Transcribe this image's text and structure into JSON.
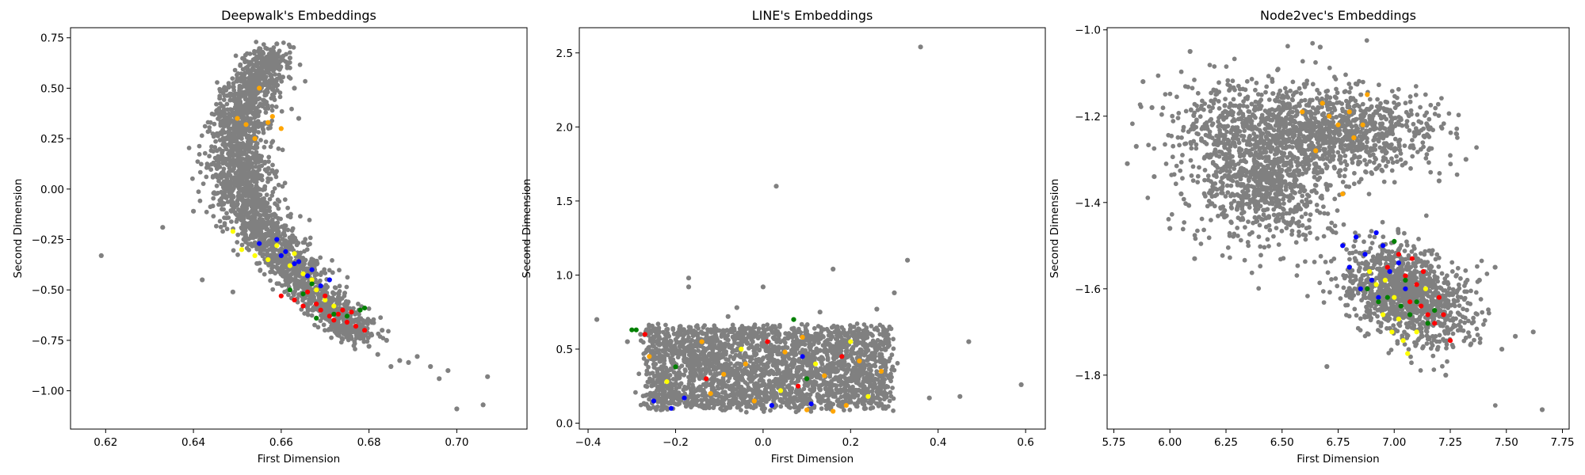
{
  "chart_data": [
    {
      "type": "scatter",
      "title": "Deepwalk's Embeddings",
      "xlabel": "First Dimension",
      "ylabel": "Second Dimension",
      "xlim": [
        0.612,
        0.716
      ],
      "ylim": [
        -1.19,
        0.8
      ],
      "xticks": [
        0.62,
        0.64,
        0.66,
        0.68,
        0.7
      ],
      "xtick_labels": [
        "0.62",
        "0.64",
        "0.66",
        "0.68",
        "0.70"
      ],
      "yticks": [
        -1.0,
        -0.75,
        -0.5,
        -0.25,
        0.0,
        0.25,
        0.5,
        0.75
      ],
      "ytick_labels": [
        "−1.00",
        "−0.75",
        "−0.50",
        "−0.25",
        "0.00",
        "0.25",
        "0.50",
        "0.75"
      ],
      "grid": false,
      "series": [
        {
          "color": "#808080",
          "points": [
            [
              0.619,
              -0.33
            ],
            [
              0.633,
              -0.19
            ],
            [
              0.64,
              -0.11
            ],
            [
              0.642,
              -0.45
            ],
            [
              0.648,
              0.22
            ],
            [
              0.649,
              -0.51
            ],
            [
              0.658,
              0.68
            ],
            [
              0.659,
              0.72
            ],
            [
              0.662,
              0.65
            ],
            [
              0.646,
              0.45
            ],
            [
              0.65,
              0.55
            ],
            [
              0.652,
              0.6
            ],
            [
              0.655,
              0.58
            ],
            [
              0.664,
              0.35
            ],
            [
              0.663,
              0.5
            ],
            [
              0.68,
              -0.78
            ],
            [
              0.682,
              -0.82
            ],
            [
              0.684,
              -0.75
            ],
            [
              0.685,
              -0.88
            ],
            [
              0.687,
              -0.85
            ],
            [
              0.689,
              -0.86
            ],
            [
              0.691,
              -0.83
            ],
            [
              0.694,
              -0.88
            ],
            [
              0.696,
              -0.94
            ],
            [
              0.698,
              -0.9
            ],
            [
              0.7,
              -1.09
            ],
            [
              0.706,
              -1.07
            ],
            [
              0.707,
              -0.93
            ],
            [
              0.683,
              -0.7
            ],
            [
              0.678,
              -0.74
            ]
          ]
        },
        {
          "color": "#ffff00",
          "points": [
            [
              0.649,
              -0.21
            ],
            [
              0.651,
              -0.3
            ],
            [
              0.654,
              -0.33
            ],
            [
              0.657,
              -0.35
            ],
            [
              0.659,
              -0.28
            ],
            [
              0.662,
              -0.38
            ],
            [
              0.665,
              -0.42
            ],
            [
              0.668,
              -0.5
            ],
            [
              0.67,
              -0.55
            ],
            [
              0.672,
              -0.58
            ],
            [
              0.667,
              -0.45
            ],
            [
              0.663,
              -0.32
            ]
          ]
        },
        {
          "color": "#0000ff",
          "points": [
            [
              0.655,
              -0.27
            ],
            [
              0.659,
              -0.25
            ],
            [
              0.661,
              -0.31
            ],
            [
              0.663,
              -0.37
            ],
            [
              0.664,
              -0.36
            ],
            [
              0.667,
              -0.4
            ],
            [
              0.669,
              -0.48
            ],
            [
              0.671,
              -0.45
            ],
            [
              0.66,
              -0.33
            ],
            [
              0.666,
              -0.43
            ]
          ]
        },
        {
          "color": "#ff0000",
          "points": [
            [
              0.66,
              -0.53
            ],
            [
              0.663,
              -0.55
            ],
            [
              0.666,
              -0.51
            ],
            [
              0.668,
              -0.57
            ],
            [
              0.669,
              -0.6
            ],
            [
              0.671,
              -0.63
            ],
            [
              0.673,
              -0.62
            ],
            [
              0.674,
              -0.6
            ],
            [
              0.675,
              -0.66
            ],
            [
              0.676,
              -0.61
            ],
            [
              0.677,
              -0.68
            ],
            [
              0.679,
              -0.7
            ],
            [
              0.665,
              -0.58
            ],
            [
              0.67,
              -0.53
            ],
            [
              0.672,
              -0.65
            ]
          ]
        },
        {
          "color": "#008000",
          "points": [
            [
              0.662,
              -0.5
            ],
            [
              0.665,
              -0.52
            ],
            [
              0.668,
              -0.64
            ],
            [
              0.672,
              -0.62
            ],
            [
              0.675,
              -0.63
            ],
            [
              0.678,
              -0.6
            ],
            [
              0.679,
              -0.59
            ],
            [
              0.667,
              -0.47
            ]
          ]
        },
        {
          "color": "#ffa500",
          "points": [
            [
              0.65,
              0.35
            ],
            [
              0.652,
              0.32
            ],
            [
              0.654,
              0.25
            ],
            [
              0.655,
              0.5
            ],
            [
              0.657,
              0.33
            ],
            [
              0.658,
              0.36
            ],
            [
              0.66,
              0.3
            ]
          ]
        }
      ]
    },
    {
      "type": "scatter",
      "title": "LINE's Embeddings",
      "xlabel": "First Dimension",
      "ylabel": "Second Dimension",
      "xlim": [
        -0.42,
        0.645
      ],
      "ylim": [
        -0.04,
        2.67
      ],
      "xticks": [
        -0.4,
        -0.2,
        0.0,
        0.2,
        0.4,
        0.6
      ],
      "xtick_labels": [
        "−0.4",
        "−0.2",
        "0.0",
        "0.2",
        "0.4",
        "0.6"
      ],
      "yticks": [
        0.0,
        0.5,
        1.0,
        1.5,
        2.0,
        2.5
      ],
      "ytick_labels": [
        "0.0",
        "0.5",
        "1.0",
        "1.5",
        "2.0",
        "2.5"
      ],
      "grid": false,
      "series": [
        {
          "color": "#808080",
          "points": [
            [
              -0.38,
              0.7
            ],
            [
              -0.31,
              0.55
            ],
            [
              -0.17,
              0.92
            ],
            [
              -0.17,
              0.98
            ],
            [
              -0.08,
              0.72
            ],
            [
              -0.06,
              0.78
            ],
            [
              0.0,
              0.92
            ],
            [
              0.03,
              1.6
            ],
            [
              0.13,
              0.75
            ],
            [
              0.16,
              1.04
            ],
            [
              0.3,
              0.88
            ],
            [
              0.33,
              1.1
            ],
            [
              0.36,
              2.54
            ],
            [
              0.38,
              0.17
            ],
            [
              0.45,
              0.18
            ],
            [
              0.47,
              0.55
            ],
            [
              0.59,
              0.26
            ],
            [
              0.26,
              0.77
            ],
            [
              -0.28,
              0.6
            ],
            [
              0.28,
              0.1
            ]
          ]
        },
        {
          "color": "#008000",
          "points": [
            [
              -0.3,
              0.63
            ],
            [
              -0.29,
              0.63
            ],
            [
              0.07,
              0.7
            ],
            [
              -0.2,
              0.38
            ],
            [
              0.1,
              0.3
            ]
          ]
        },
        {
          "color": "#0000ff",
          "points": [
            [
              -0.25,
              0.15
            ],
            [
              -0.21,
              0.1
            ],
            [
              -0.18,
              0.17
            ],
            [
              0.02,
              0.12
            ],
            [
              0.11,
              0.13
            ],
            [
              0.09,
              0.45
            ]
          ]
        },
        {
          "color": "#ffa500",
          "points": [
            [
              -0.26,
              0.45
            ],
            [
              -0.14,
              0.55
            ],
            [
              -0.09,
              0.33
            ],
            [
              -0.04,
              0.4
            ],
            [
              -0.02,
              0.15
            ],
            [
              0.05,
              0.48
            ],
            [
              0.09,
              0.58
            ],
            [
              0.14,
              0.32
            ],
            [
              0.19,
              0.12
            ],
            [
              0.16,
              0.08
            ],
            [
              0.22,
              0.42
            ],
            [
              0.27,
              0.35
            ],
            [
              -0.12,
              0.2
            ],
            [
              0.1,
              0.09
            ]
          ]
        },
        {
          "color": "#ffff00",
          "points": [
            [
              -0.22,
              0.28
            ],
            [
              -0.05,
              0.5
            ],
            [
              0.04,
              0.22
            ],
            [
              0.12,
              0.4
            ],
            [
              0.2,
              0.55
            ],
            [
              0.24,
              0.18
            ]
          ]
        },
        {
          "color": "#ff0000",
          "points": [
            [
              -0.27,
              0.6
            ],
            [
              -0.13,
              0.3
            ],
            [
              0.01,
              0.55
            ],
            [
              0.08,
              0.25
            ],
            [
              0.18,
              0.45
            ]
          ]
        }
      ]
    },
    {
      "type": "scatter",
      "title": "Node2vec's Embeddings",
      "xlabel": "First Dimension",
      "ylabel": "Second Dimension",
      "xlim": [
        5.72,
        7.78
      ],
      "ylim": [
        -1.925,
        -0.995
      ],
      "xticks": [
        5.75,
        6.0,
        6.25,
        6.5,
        6.75,
        7.0,
        7.25,
        7.5,
        7.75
      ],
      "xtick_labels": [
        "5.75",
        "6.00",
        "6.25",
        "6.50",
        "6.75",
        "7.00",
        "7.25",
        "7.50",
        "7.75"
      ],
      "yticks": [
        -1.8,
        -1.6,
        -1.4,
        -1.2,
        -1.0
      ],
      "ytick_labels": [
        "−1.8",
        "−1.6",
        "−1.4",
        "−1.2",
        "−1.0"
      ],
      "grid": false,
      "series": [
        {
          "color": "#808080",
          "points": [
            [
              5.81,
              -1.31
            ],
            [
              5.85,
              -1.27
            ],
            [
              5.88,
              -1.12
            ],
            [
              5.92,
              -1.18
            ],
            [
              5.93,
              -1.34
            ],
            [
              6.09,
              -1.05
            ],
            [
              6.11,
              -1.53
            ],
            [
              6.67,
              -1.04
            ],
            [
              6.7,
              -1.78
            ],
            [
              7.54,
              -1.71
            ],
            [
              7.62,
              -1.7
            ],
            [
              7.66,
              -1.88
            ],
            [
              7.48,
              -1.74
            ],
            [
              7.45,
              -1.55
            ],
            [
              7.38,
              -1.58
            ],
            [
              7.23,
              -1.8
            ],
            [
              6.0,
              -1.46
            ],
            [
              6.05,
              -1.38
            ],
            [
              7.2,
              -1.35
            ],
            [
              7.32,
              -1.3
            ]
          ]
        },
        {
          "color": "#ffa500",
          "points": [
            [
              6.59,
              -1.19
            ],
            [
              6.68,
              -1.17
            ],
            [
              6.75,
              -1.22
            ],
            [
              6.82,
              -1.25
            ],
            [
              6.86,
              -1.22
            ],
            [
              6.77,
              -1.38
            ],
            [
              6.65,
              -1.28
            ],
            [
              6.71,
              -1.2
            ],
            [
              6.8,
              -1.19
            ],
            [
              6.88,
              -1.15
            ]
          ]
        },
        {
          "color": "#0000ff",
          "points": [
            [
              6.77,
              -1.5
            ],
            [
              6.8,
              -1.55
            ],
            [
              6.83,
              -1.48
            ],
            [
              6.87,
              -1.52
            ],
            [
              6.9,
              -1.58
            ],
            [
              6.92,
              -1.47
            ],
            [
              6.95,
              -1.5
            ],
            [
              6.98,
              -1.56
            ],
            [
              7.02,
              -1.54
            ],
            [
              7.05,
              -1.6
            ],
            [
              6.85,
              -1.6
            ],
            [
              6.93,
              -1.62
            ]
          ]
        },
        {
          "color": "#ff0000",
          "points": [
            [
              6.97,
              -1.55
            ],
            [
              7.02,
              -1.52
            ],
            [
              7.05,
              -1.57
            ],
            [
              7.08,
              -1.53
            ],
            [
              7.1,
              -1.59
            ],
            [
              7.12,
              -1.64
            ],
            [
              7.15,
              -1.66
            ],
            [
              7.18,
              -1.68
            ],
            [
              7.2,
              -1.62
            ],
            [
              7.22,
              -1.66
            ],
            [
              7.25,
              -1.72
            ],
            [
              7.07,
              -1.63
            ],
            [
              7.13,
              -1.56
            ]
          ]
        },
        {
          "color": "#008000",
          "points": [
            [
              6.88,
              -1.6
            ],
            [
              6.93,
              -1.63
            ],
            [
              6.97,
              -1.62
            ],
            [
              7.0,
              -1.49
            ],
            [
              7.03,
              -1.64
            ],
            [
              7.07,
              -1.66
            ],
            [
              7.1,
              -1.63
            ],
            [
              7.15,
              -1.68
            ],
            [
              7.18,
              -1.65
            ],
            [
              7.05,
              -1.58
            ]
          ]
        },
        {
          "color": "#ffff00",
          "points": [
            [
              6.89,
              -1.56
            ],
            [
              6.92,
              -1.59
            ],
            [
              6.95,
              -1.66
            ],
            [
              6.99,
              -1.7
            ],
            [
              7.02,
              -1.67
            ],
            [
              7.04,
              -1.72
            ],
            [
              7.06,
              -1.75
            ],
            [
              7.1,
              -1.7
            ],
            [
              7.14,
              -1.6
            ],
            [
              6.96,
              -1.58
            ],
            [
              7.0,
              -1.62
            ]
          ]
        }
      ]
    }
  ]
}
